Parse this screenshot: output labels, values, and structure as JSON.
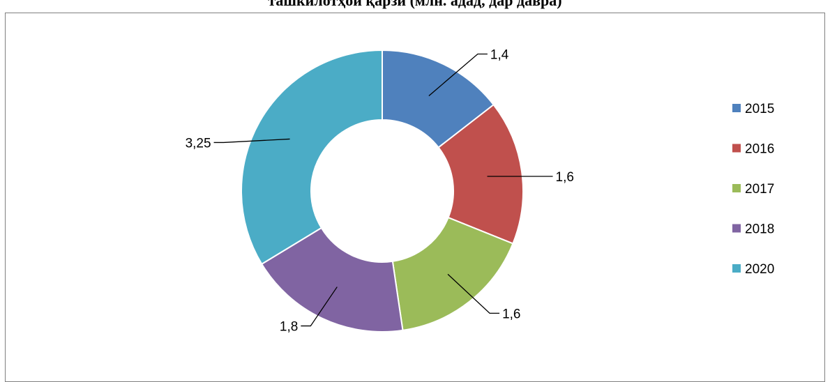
{
  "chart_data": {
    "type": "pie",
    "title": "ташкилотҳои қарзӣ (млн. адад, дар давра)",
    "categories": [
      "2015",
      "2016",
      "2017",
      "2018",
      "2020"
    ],
    "values": [
      1.4,
      1.6,
      1.6,
      1.8,
      3.25
    ],
    "value_labels": [
      "1,4",
      "1,6",
      "1,6",
      "1,8",
      "3,25"
    ],
    "colors": [
      "#4f81bd",
      "#c0504d",
      "#9bbb59",
      "#8064a2",
      "#4bacc6"
    ],
    "legend": "right"
  }
}
